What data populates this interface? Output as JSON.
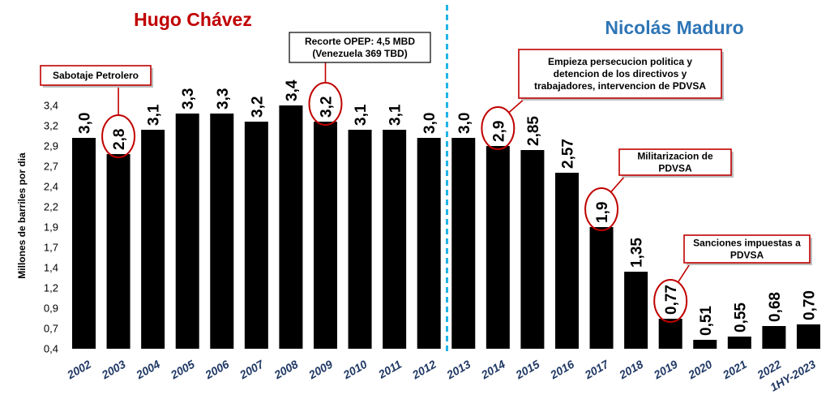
{
  "leaders": {
    "left": "Hugo Chávez",
    "right": "Nicolás Maduro"
  },
  "colors": {
    "bar": "#000000",
    "chavez": "#c00000",
    "maduro": "#2e75b6",
    "divider": "#1fb3e8",
    "callout": "#c00000",
    "xtick": "#1f3864"
  },
  "chart_data": {
    "type": "bar",
    "ylabel": "Millones de barriles por dia",
    "ylim": [
      0.4,
      3.4
    ],
    "yticks": [
      "0,4",
      "0,7",
      "0,9",
      "1,2",
      "1,4",
      "1,7",
      "1,9",
      "2,2",
      "2,4",
      "2,7",
      "2,9",
      "3,2",
      "3,4"
    ],
    "grid": false,
    "categories": [
      "2002",
      "2003",
      "2004",
      "2005",
      "2006",
      "2007",
      "2008",
      "2009",
      "2010",
      "2011",
      "2012",
      "2013",
      "2014",
      "2015",
      "2016",
      "2017",
      "2018",
      "2019",
      "2020",
      "2021",
      "2022",
      "1HY-2023"
    ],
    "values": [
      3.0,
      2.8,
      3.1,
      3.3,
      3.3,
      3.2,
      3.4,
      3.2,
      3.1,
      3.1,
      3.0,
      3.0,
      2.9,
      2.85,
      2.57,
      1.9,
      1.35,
      0.77,
      0.51,
      0.55,
      0.68,
      0.7
    ],
    "value_labels": [
      "3,0",
      "2,8",
      "3,1",
      "3,3",
      "3,3",
      "3,2",
      "3,4",
      "3,2",
      "3,1",
      "3,1",
      "3,0",
      "3,0",
      "2,9",
      "2,85",
      "2,57",
      "1,9",
      "1,35",
      "0,77",
      "0,51",
      "0,55",
      "0,68",
      "0,70"
    ],
    "divider_after": "2012",
    "annotations": [
      {
        "category": "2003",
        "lines": [
          "Sabotaje Petrolero"
        ],
        "style": "red"
      },
      {
        "category": "2009",
        "lines": [
          "Recorte OPEP: 4,5 MBD",
          "(Venezuela 369 TBD)"
        ],
        "style": "black"
      },
      {
        "category": "2014",
        "lines": [
          "Empieza persecucion politica y",
          "detencion de los directivos y",
          "trabajadores, intervencion de PDVSA"
        ],
        "style": "red"
      },
      {
        "category": "2017",
        "lines": [
          "Militarizacion de",
          "PDVSA"
        ],
        "style": "red"
      },
      {
        "category": "2019",
        "lines": [
          "Sanciones impuestas a",
          "PDVSA"
        ],
        "style": "red"
      }
    ]
  }
}
